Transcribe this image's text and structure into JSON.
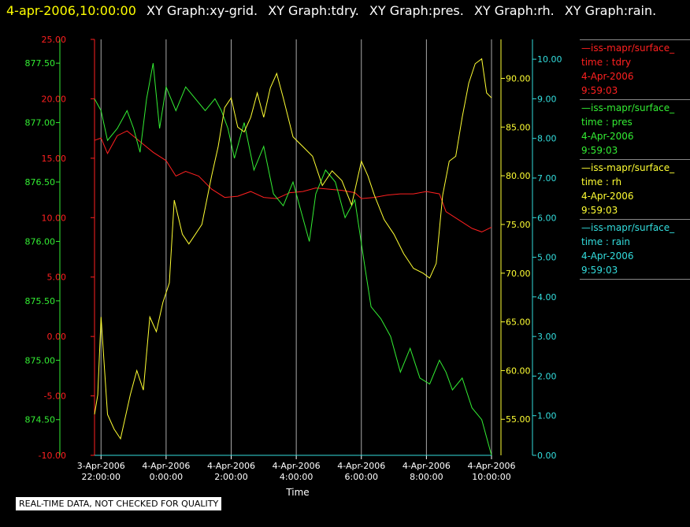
{
  "header": {
    "timestamp": "4-apr-2006,10:00:00",
    "graph_titles": [
      "XY Graph:xy-grid.",
      "XY Graph:tdry.",
      "XY Graph:pres.",
      "XY Graph:rh.",
      "XY Graph:rain."
    ]
  },
  "qc_note": "REAL-TIME DATA, NOT CHECKED FOR QUALITY",
  "colors": {
    "tdry": "#ff2020",
    "pres": "#33ee33",
    "rh": "#ffff33",
    "rain": "#33dddd",
    "grid": "#aaaaaa",
    "background": "#000000"
  },
  "legend": [
    {
      "line1": "—iss-mapr/surface_",
      "line2": "time : tdry",
      "line3": "4-Apr-2006",
      "line4": "9:59:03",
      "color": "#ff2020"
    },
    {
      "line1": "—iss-mapr/surface_",
      "line2": "time : pres",
      "line3": "4-Apr-2006",
      "line4": "9:59:03",
      "color": "#33ee33"
    },
    {
      "line1": "—iss-mapr/surface_",
      "line2": "time : rh",
      "line3": "4-Apr-2006",
      "line4": "9:59:03",
      "color": "#ffff33"
    },
    {
      "line1": "—iss-mapr/surface_",
      "line2": "time : rain",
      "line3": "4-Apr-2006",
      "line4": "9:59:03",
      "color": "#33dddd"
    }
  ],
  "chart_data": {
    "type": "line",
    "xlabel": "Time",
    "x_range_hours": [
      -2.2,
      10.0
    ],
    "x_ticks": [
      {
        "hour": -2,
        "line1": "3-Apr-2006",
        "line2": "22:00:00"
      },
      {
        "hour": 0,
        "line1": "4-Apr-2006",
        "line2": "0:00:00"
      },
      {
        "hour": 2,
        "line1": "4-Apr-2006",
        "line2": "2:00:00"
      },
      {
        "hour": 4,
        "line1": "4-Apr-2006",
        "line2": "4:00:00"
      },
      {
        "hour": 6,
        "line1": "4-Apr-2006",
        "line2": "6:00:00"
      },
      {
        "hour": 8,
        "line1": "4-Apr-2006",
        "line2": "8:00:00"
      },
      {
        "hour": 10,
        "line1": "4-Apr-2006",
        "line2": "10:00:00"
      }
    ],
    "grid": "vertical",
    "axes": {
      "tdry": {
        "range": [
          -10,
          25
        ],
        "ticks": [
          "25.00",
          "20.00",
          "15.00",
          "10.00",
          "5.00",
          "0.00",
          "-5.00",
          "-10.00"
        ]
      },
      "pres": {
        "range": [
          874.2,
          877.7
        ],
        "ticks": [
          "877.50",
          "877.00",
          "876.50",
          "876.00",
          "875.50",
          "875.00",
          "874.50"
        ]
      },
      "rh": {
        "range": [
          51.3,
          94.0
        ],
        "ticks": [
          "90.00",
          "85.00",
          "80.00",
          "75.00",
          "70.00",
          "65.00",
          "60.00",
          "55.00"
        ]
      },
      "rain": {
        "range": [
          0,
          10.5
        ],
        "ticks": [
          "10.00",
          "9.00",
          "8.00",
          "7.00",
          "6.00",
          "5.00",
          "4.00",
          "3.00",
          "2.00",
          "1.00",
          "0.00"
        ]
      }
    },
    "series": [
      {
        "name": "tdry",
        "points": [
          [
            -2.2,
            16.5
          ],
          [
            -2.0,
            16.7
          ],
          [
            -1.8,
            15.4
          ],
          [
            -1.5,
            16.9
          ],
          [
            -1.2,
            17.3
          ],
          [
            -0.8,
            16.4
          ],
          [
            -0.4,
            15.5
          ],
          [
            0.0,
            14.8
          ],
          [
            0.3,
            13.5
          ],
          [
            0.6,
            13.9
          ],
          [
            1.0,
            13.5
          ],
          [
            1.4,
            12.4
          ],
          [
            1.8,
            11.7
          ],
          [
            2.2,
            11.8
          ],
          [
            2.6,
            12.2
          ],
          [
            3.0,
            11.7
          ],
          [
            3.4,
            11.6
          ],
          [
            3.8,
            12.1
          ],
          [
            4.2,
            12.2
          ],
          [
            4.6,
            12.5
          ],
          [
            5.0,
            12.4
          ],
          [
            5.4,
            12.3
          ],
          [
            5.8,
            12.1
          ],
          [
            6.0,
            11.6
          ],
          [
            6.4,
            11.7
          ],
          [
            6.8,
            11.9
          ],
          [
            7.2,
            12.0
          ],
          [
            7.6,
            12.0
          ],
          [
            8.0,
            12.2
          ],
          [
            8.4,
            12.0
          ],
          [
            8.6,
            10.5
          ],
          [
            9.0,
            9.8
          ],
          [
            9.4,
            9.1
          ],
          [
            9.7,
            8.8
          ],
          [
            10.0,
            9.2
          ]
        ]
      },
      {
        "name": "pres",
        "points": [
          [
            -2.2,
            877.2
          ],
          [
            -2.0,
            877.1
          ],
          [
            -1.8,
            876.85
          ],
          [
            -1.5,
            876.95
          ],
          [
            -1.2,
            877.1
          ],
          [
            -1.0,
            876.95
          ],
          [
            -0.8,
            876.75
          ],
          [
            -0.6,
            877.2
          ],
          [
            -0.4,
            877.5
          ],
          [
            -0.2,
            876.95
          ],
          [
            0.0,
            877.3
          ],
          [
            0.3,
            877.1
          ],
          [
            0.6,
            877.3
          ],
          [
            0.9,
            877.2
          ],
          [
            1.2,
            877.1
          ],
          [
            1.5,
            877.2
          ],
          [
            1.7,
            877.1
          ],
          [
            1.9,
            876.95
          ],
          [
            2.1,
            876.7
          ],
          [
            2.4,
            877.0
          ],
          [
            2.7,
            876.6
          ],
          [
            3.0,
            876.8
          ],
          [
            3.3,
            876.4
          ],
          [
            3.6,
            876.3
          ],
          [
            3.9,
            876.5
          ],
          [
            4.2,
            876.2
          ],
          [
            4.4,
            876.0
          ],
          [
            4.6,
            876.4
          ],
          [
            4.9,
            876.6
          ],
          [
            5.2,
            876.5
          ],
          [
            5.5,
            876.2
          ],
          [
            5.8,
            876.35
          ],
          [
            6.1,
            875.8
          ],
          [
            6.3,
            875.45
          ],
          [
            6.6,
            875.35
          ],
          [
            6.9,
            875.2
          ],
          [
            7.2,
            874.9
          ],
          [
            7.5,
            875.1
          ],
          [
            7.8,
            874.85
          ],
          [
            8.1,
            874.8
          ],
          [
            8.4,
            875.0
          ],
          [
            8.6,
            874.9
          ],
          [
            8.8,
            874.75
          ],
          [
            9.1,
            874.85
          ],
          [
            9.4,
            874.6
          ],
          [
            9.7,
            874.5
          ],
          [
            10.0,
            874.2
          ]
        ]
      },
      {
        "name": "rh",
        "points": [
          [
            -2.2,
            55.5
          ],
          [
            -2.1,
            57.5
          ],
          [
            -2.0,
            65.5
          ],
          [
            -1.8,
            55.5
          ],
          [
            -1.6,
            54.0
          ],
          [
            -1.4,
            53.0
          ],
          [
            -1.1,
            57.5
          ],
          [
            -0.9,
            60.0
          ],
          [
            -0.7,
            58.0
          ],
          [
            -0.5,
            65.5
          ],
          [
            -0.3,
            64.0
          ],
          [
            -0.1,
            67.0
          ],
          [
            0.1,
            69.0
          ],
          [
            0.25,
            77.5
          ],
          [
            0.5,
            74.0
          ],
          [
            0.7,
            73.0
          ],
          [
            0.9,
            74.0
          ],
          [
            1.1,
            75.0
          ],
          [
            1.4,
            80.0
          ],
          [
            1.6,
            83.0
          ],
          [
            1.8,
            87.0
          ],
          [
            2.0,
            88.0
          ],
          [
            2.2,
            85.0
          ],
          [
            2.4,
            84.5
          ],
          [
            2.6,
            86.0
          ],
          [
            2.8,
            88.5
          ],
          [
            3.0,
            86.0
          ],
          [
            3.2,
            89.0
          ],
          [
            3.4,
            90.5
          ],
          [
            3.6,
            88.0
          ],
          [
            3.9,
            84.0
          ],
          [
            4.2,
            83.0
          ],
          [
            4.5,
            82.0
          ],
          [
            4.8,
            79.0
          ],
          [
            5.1,
            80.5
          ],
          [
            5.4,
            79.5
          ],
          [
            5.7,
            77.0
          ],
          [
            6.0,
            81.5
          ],
          [
            6.2,
            80.0
          ],
          [
            6.4,
            78.0
          ],
          [
            6.7,
            75.5
          ],
          [
            7.0,
            74.0
          ],
          [
            7.3,
            72.0
          ],
          [
            7.6,
            70.5
          ],
          [
            7.9,
            70.0
          ],
          [
            8.1,
            69.5
          ],
          [
            8.3,
            71.0
          ],
          [
            8.5,
            78.0
          ],
          [
            8.7,
            81.5
          ],
          [
            8.9,
            82.0
          ],
          [
            9.1,
            86.0
          ],
          [
            9.3,
            89.5
          ],
          [
            9.5,
            91.5
          ],
          [
            9.7,
            92.0
          ],
          [
            9.85,
            88.5
          ],
          [
            10.0,
            88.0
          ]
        ]
      },
      {
        "name": "rain",
        "points": [
          [
            -2.2,
            0.0
          ],
          [
            10.0,
            0.0
          ]
        ]
      }
    ]
  }
}
